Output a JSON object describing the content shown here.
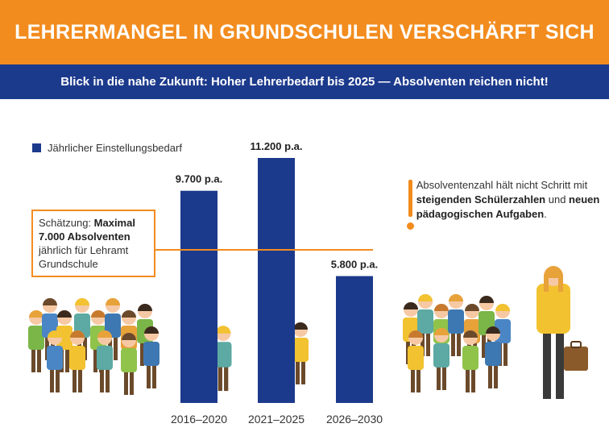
{
  "header": {
    "title": "LEHRERMANGEL IN GRUNDSCHULEN VERSCHÄRFT SICH"
  },
  "subheader": {
    "text": "Blick in die nahe Zukunft: Hoher Lehrerbedarf bis 2025 — Absolventen reichen nicht!"
  },
  "legend": {
    "label": "Jährlicher Einstellungsbedarf"
  },
  "note": {
    "prefix": "Schätzung: ",
    "bold": "Maximal 7.000 Absolventen",
    "rest": "jährlich für Lehramt Grundschule"
  },
  "callout": {
    "t1": "Absolventenzahl hält nicht Schritt mit ",
    "b1": "steigenden Schülerzahlen",
    "t2": " und ",
    "b2": "neuen pädagogischen Aufgaben",
    "t3": "."
  },
  "chart_data": {
    "type": "bar",
    "categories": [
      "2016–2020",
      "2021–2025",
      "2026–2030"
    ],
    "values": [
      9700,
      11200,
      5800
    ],
    "value_labels": [
      "9.700 p.a.",
      "11.200 p.a.",
      "5.800 p.a."
    ],
    "series_name": "Jährlicher Einstellungsbedarf",
    "reference_line": {
      "value": 7000,
      "label": "Maximal 7.000 Absolventen"
    },
    "ylim": [
      0,
      11200
    ]
  },
  "colors": {
    "orange": "#F28C1E",
    "navy": "#1C3A8C",
    "bar": "#1C3A8C",
    "text": "#333333"
  }
}
